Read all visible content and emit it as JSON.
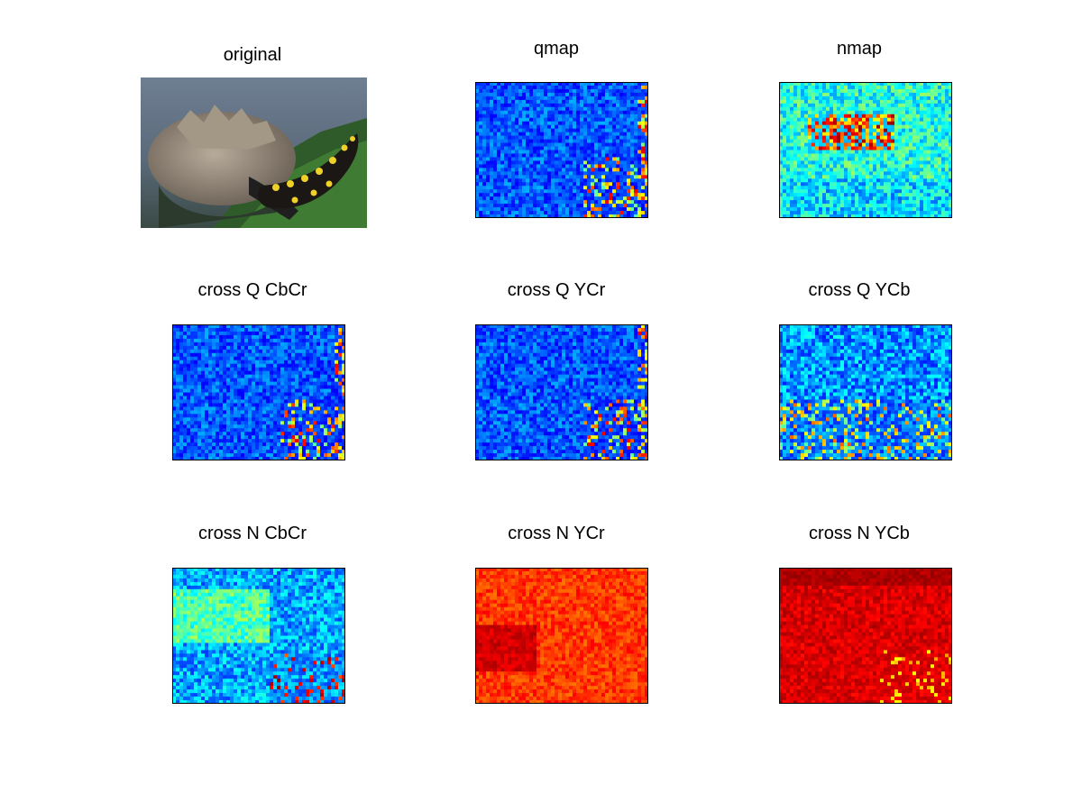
{
  "figure": {
    "panels": [
      {
        "title": "original",
        "kind": "photo"
      },
      {
        "title": "qmap",
        "kind": "heatmap-low"
      },
      {
        "title": "nmap",
        "kind": "heatmap-mid"
      },
      {
        "title": "cross Q CbCr",
        "kind": "heatmap-low"
      },
      {
        "title": "cross Q YCr",
        "kind": "heatmap-low"
      },
      {
        "title": "cross Q YCb",
        "kind": "heatmap-low"
      },
      {
        "title": "cross N CbCr",
        "kind": "heatmap-cyan"
      },
      {
        "title": "cross N YCr",
        "kind": "heatmap-orange"
      },
      {
        "title": "cross N YCb",
        "kind": "heatmap-red"
      }
    ]
  },
  "colors": {
    "jet_dark_blue": "#00008f",
    "jet_blue": "#0000ff",
    "jet_cyan": "#00ffff",
    "jet_yellow": "#ffff00",
    "jet_orange": "#ff8000",
    "jet_red": "#ff0000",
    "jet_dark_red": "#800000"
  }
}
